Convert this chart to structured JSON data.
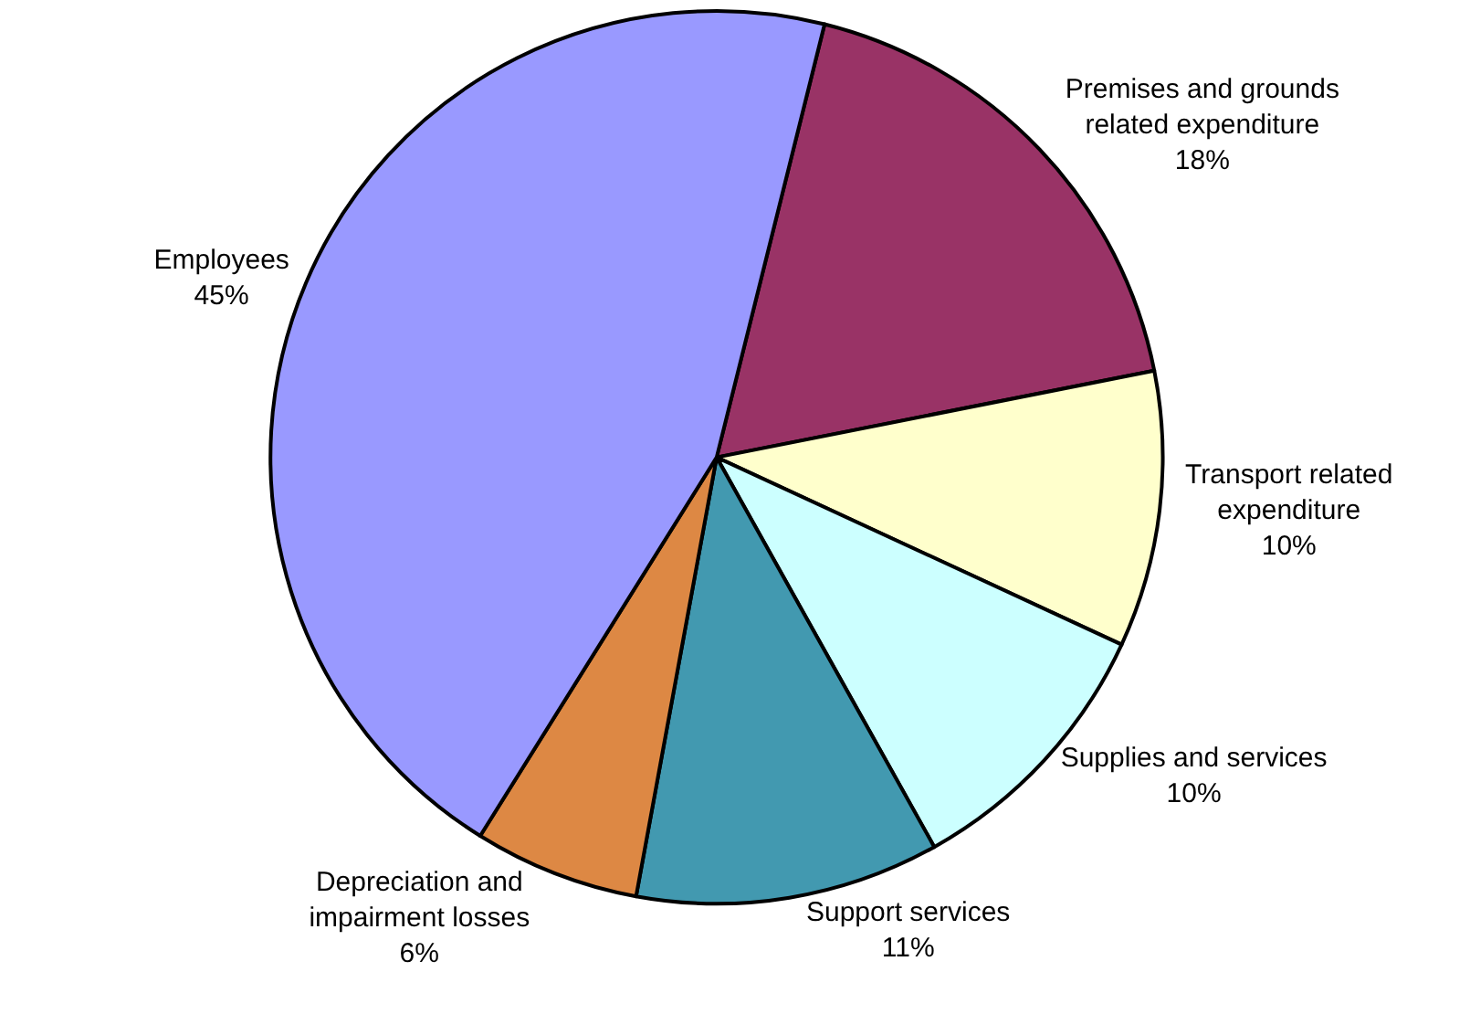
{
  "chart_data": {
    "type": "pie",
    "categories": [
      "Premises and grounds related expenditure",
      "Transport related expenditure",
      "Supplies and services",
      "Support services",
      "Depreciation and impairment losses",
      "Employees"
    ],
    "values": [
      18,
      10,
      10,
      11,
      6,
      45
    ],
    "value_labels": [
      "18%",
      "10%",
      "10%",
      "11%",
      "6%",
      "45%"
    ],
    "colors": [
      "#993366",
      "#ffffcc",
      "#ccffff",
      "#4299b0",
      "#dd8844",
      "#9999ff"
    ],
    "legend": false
  }
}
